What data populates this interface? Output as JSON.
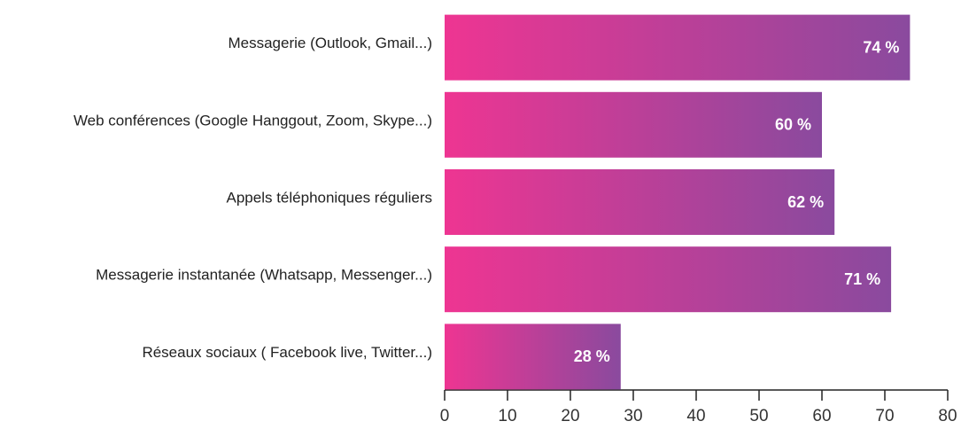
{
  "chart_data": {
    "type": "bar",
    "orientation": "horizontal",
    "categories": [
      "Messagerie (Outlook, Gmail...)",
      "Web conférences (Google Hanggout, Zoom, Skype...)",
      "Appels téléphoniques réguliers",
      "Messagerie instantanée (Whatsapp, Messenger...)",
      "Réseaux sociaux ( Facebook live, Twitter...)"
    ],
    "values": [
      74,
      60,
      62,
      71,
      28
    ],
    "value_labels": [
      "74 %",
      "60 %",
      "62 %",
      "71 %",
      "28 %"
    ],
    "gradient": [
      "#ee3592",
      "#8a4a9e"
    ],
    "xlim": [
      0,
      80
    ],
    "xticks": [
      0,
      10,
      20,
      30,
      40,
      50,
      60,
      70,
      80
    ]
  }
}
